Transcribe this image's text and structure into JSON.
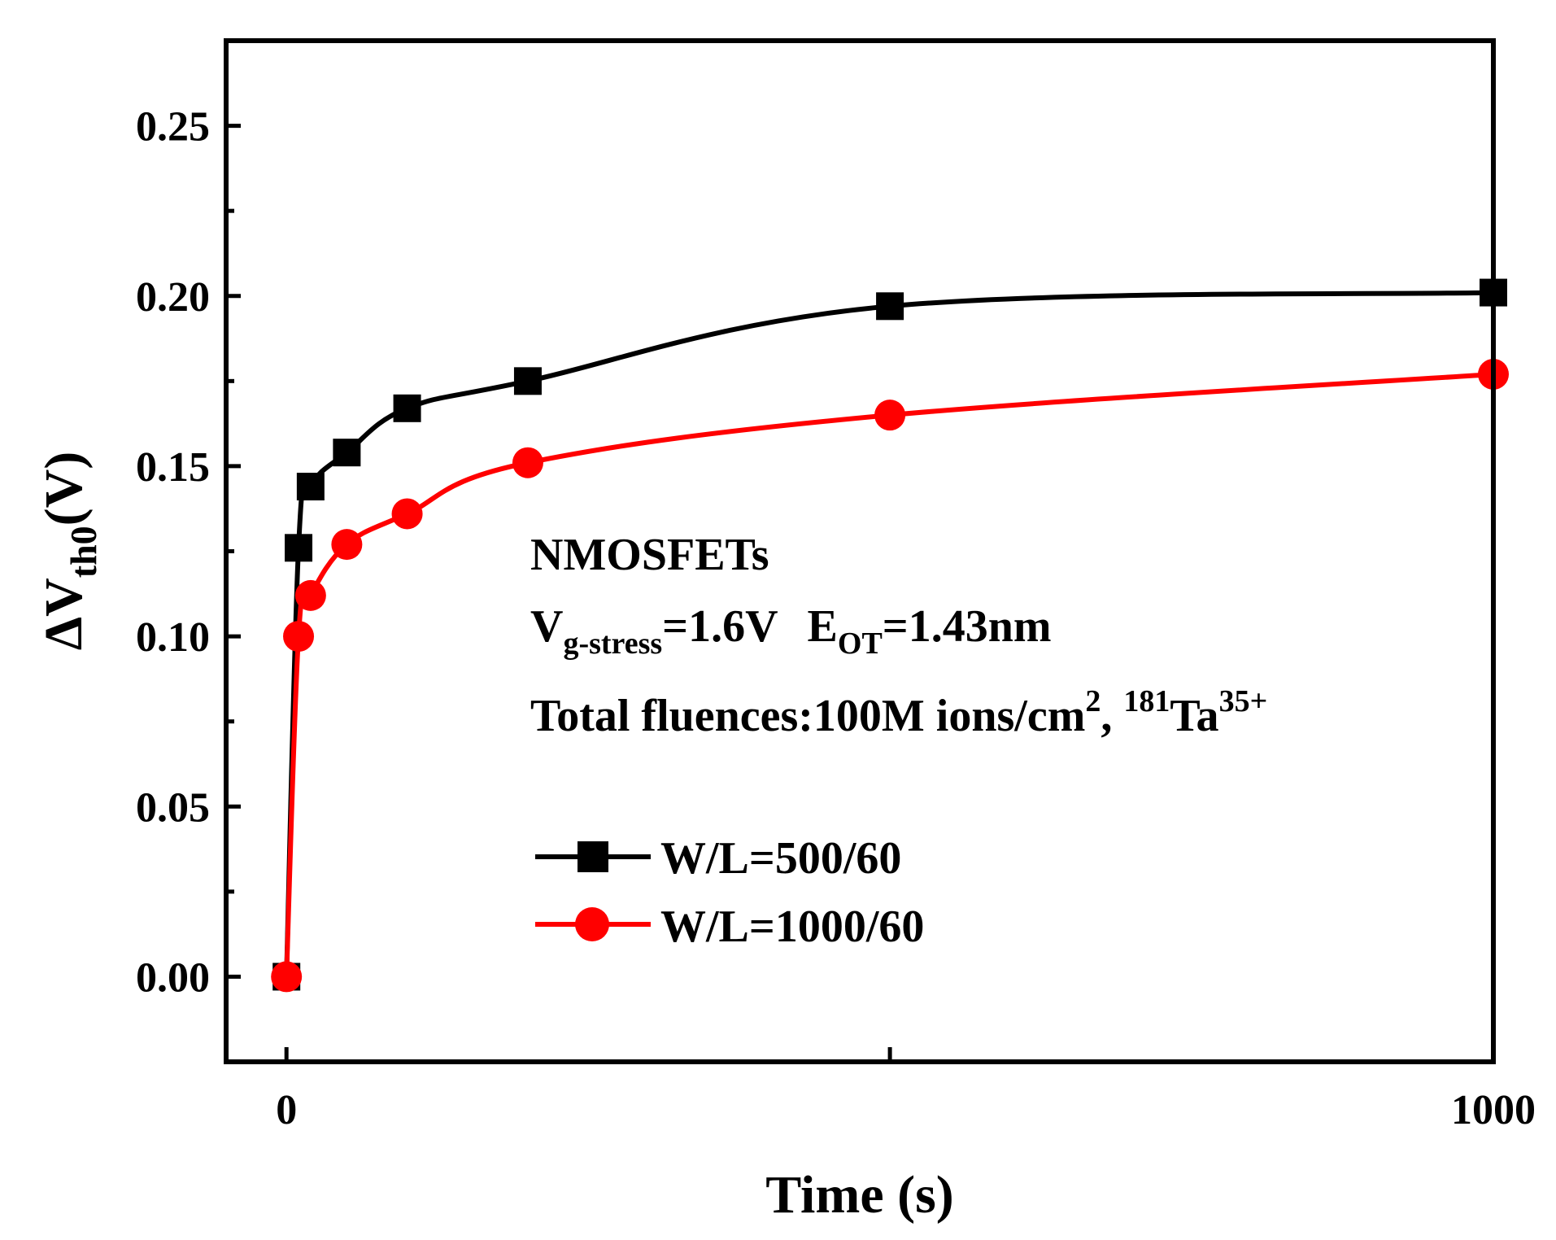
{
  "chart_data": {
    "type": "line",
    "xlabel": "Time (s)",
    "ylabel": {
      "symbol": "ΔV",
      "subscript": "th0",
      "unit": "(V)"
    },
    "xlim": [
      -50,
      1000
    ],
    "ylim": [
      -0.025,
      0.275
    ],
    "x_ticks": [
      0,
      500,
      1000
    ],
    "x_tick_labels": [
      "0",
      "",
      "1000"
    ],
    "y_ticks": [
      0.0,
      0.05,
      0.1,
      0.15,
      0.2,
      0.25
    ],
    "y_tick_labels": [
      "0.00",
      "0.05",
      "0.10",
      "0.15",
      "0.20",
      "0.25"
    ],
    "series": [
      {
        "name": "W/L=500/60",
        "color": "#000000",
        "marker": "square",
        "x": [
          0,
          10,
          20,
          50,
          100,
          200,
          500,
          1000
        ],
        "y": [
          0.0,
          0.126,
          0.144,
          0.154,
          0.167,
          0.175,
          0.197,
          0.201
        ]
      },
      {
        "name": "W/L=1000/60",
        "color": "#ff0000",
        "marker": "circle",
        "x": [
          0,
          10,
          20,
          50,
          100,
          200,
          500,
          1000
        ],
        "y": [
          0.0,
          0.1,
          0.112,
          0.127,
          0.136,
          0.151,
          0.165,
          0.177
        ]
      }
    ],
    "annotations": {
      "device": "NMOSFETs",
      "vg_symbol": "V",
      "vg_sub": "g-stress",
      "vg_value": "=1.6V",
      "eot_symbol": "E",
      "eot_sub": "OT",
      "eot_value": "=1.43nm",
      "fluence_text": "Total fluences:100M ions/cm",
      "fluence_sup": "2",
      "fluence_sep": ", ",
      "ion_mass": "181",
      "ion_symbol": "Ta",
      "ion_charge": "35+"
    },
    "legend_position": "lower-middle"
  }
}
